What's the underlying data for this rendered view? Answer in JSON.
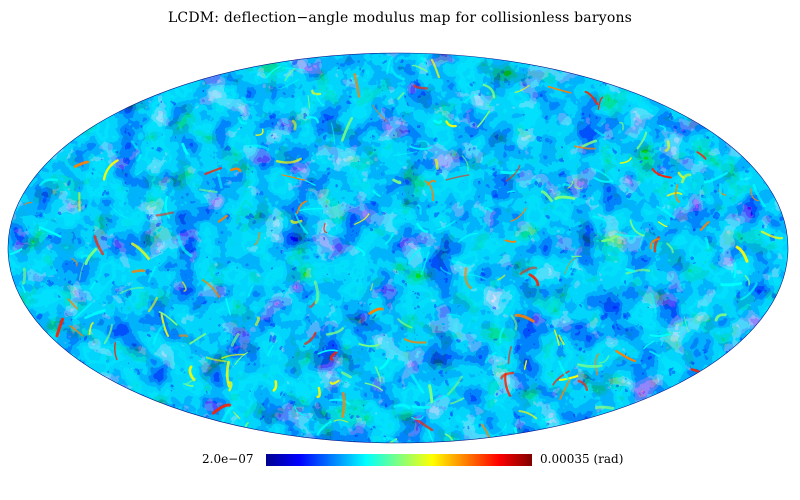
{
  "title": "LCDM: deflection−angle modulus map for collisionless baryons",
  "projection": "mollweide",
  "colormap": "jet",
  "colorbar": {
    "min_label": "2.0e−07",
    "max_label": "0.00035 (rad)"
  },
  "colors": {
    "background": "#ffffff",
    "map_base": "#0a2ee6",
    "map_dark": "#0000b0",
    "jet": [
      "#00008f",
      "#0000ff",
      "#0080ff",
      "#00ffff",
      "#80ff80",
      "#ffff00",
      "#ff8000",
      "#ff0000",
      "#800000"
    ]
  }
}
